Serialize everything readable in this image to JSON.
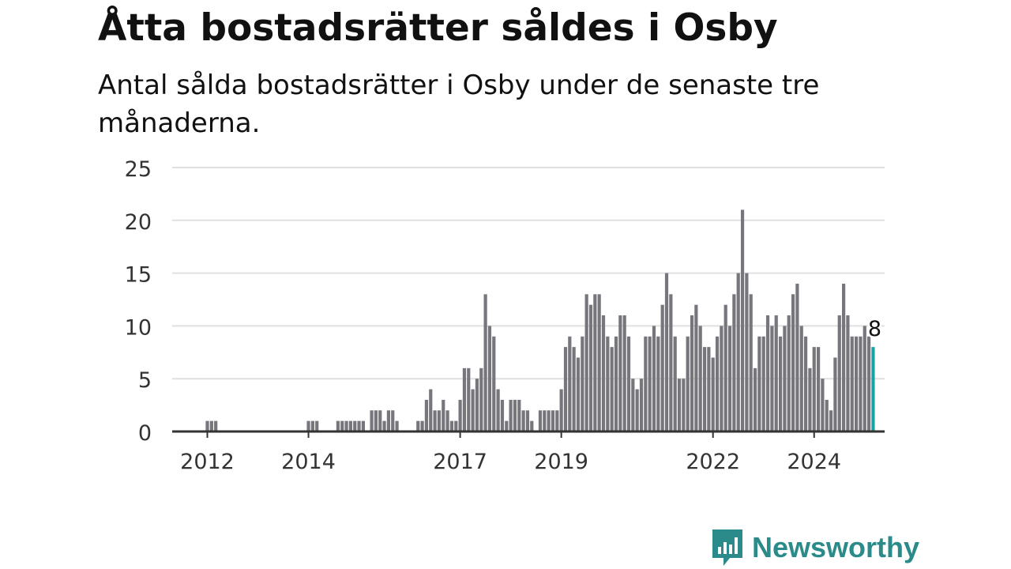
{
  "title": "Åtta bostadsrätter såldes i Osby",
  "subtitle": "Antal sålda bostadsrätter i Osby under de senaste tre månaderna.",
  "brand": {
    "name": "Newsworthy"
  },
  "colors": {
    "bar": "#76767c",
    "highlight": "#1aa3a3",
    "grid": "#e0e0e0",
    "axis": "#333333",
    "brand": "#2b8a8a"
  },
  "chart_data": {
    "type": "bar",
    "ylim": [
      0,
      25
    ],
    "y_ticks": [
      0,
      5,
      10,
      15,
      20,
      25
    ],
    "x_tick_labels": [
      {
        "label": "2012",
        "index": 0
      },
      {
        "label": "2014",
        "index": 24
      },
      {
        "label": "2017",
        "index": 60
      },
      {
        "label": "2019",
        "index": 84
      },
      {
        "label": "2022",
        "index": 120
      },
      {
        "label": "2024",
        "index": 144
      }
    ],
    "values": [
      1,
      1,
      1,
      0,
      0,
      0,
      0,
      0,
      0,
      0,
      0,
      0,
      0,
      0,
      0,
      0,
      0,
      0,
      0,
      0,
      0,
      0,
      0,
      0,
      1,
      1,
      1,
      0,
      0,
      0,
      0,
      1,
      1,
      1,
      1,
      1,
      1,
      1,
      0,
      2,
      2,
      2,
      1,
      2,
      2,
      1,
      0,
      0,
      0,
      0,
      1,
      1,
      3,
      4,
      2,
      2,
      3,
      2,
      1,
      1,
      3,
      6,
      6,
      4,
      5,
      6,
      13,
      10,
      9,
      4,
      3,
      1,
      3,
      3,
      3,
      2,
      2,
      1,
      0,
      2,
      2,
      2,
      2,
      2,
      4,
      8,
      9,
      8,
      7,
      9,
      13,
      12,
      13,
      13,
      11,
      9,
      8,
      9,
      11,
      11,
      9,
      5,
      4,
      5,
      9,
      9,
      10,
      9,
      12,
      15,
      13,
      9,
      5,
      5,
      9,
      11,
      12,
      10,
      8,
      8,
      7,
      9,
      10,
      12,
      10,
      13,
      15,
      21,
      15,
      13,
      6,
      9,
      9,
      11,
      10,
      11,
      9,
      10,
      11,
      13,
      14,
      10,
      9,
      6,
      8,
      8,
      5,
      3,
      2,
      7,
      11,
      14,
      11,
      9,
      9,
      9,
      10,
      9,
      8
    ],
    "highlight_last": true,
    "last_label": "8"
  }
}
